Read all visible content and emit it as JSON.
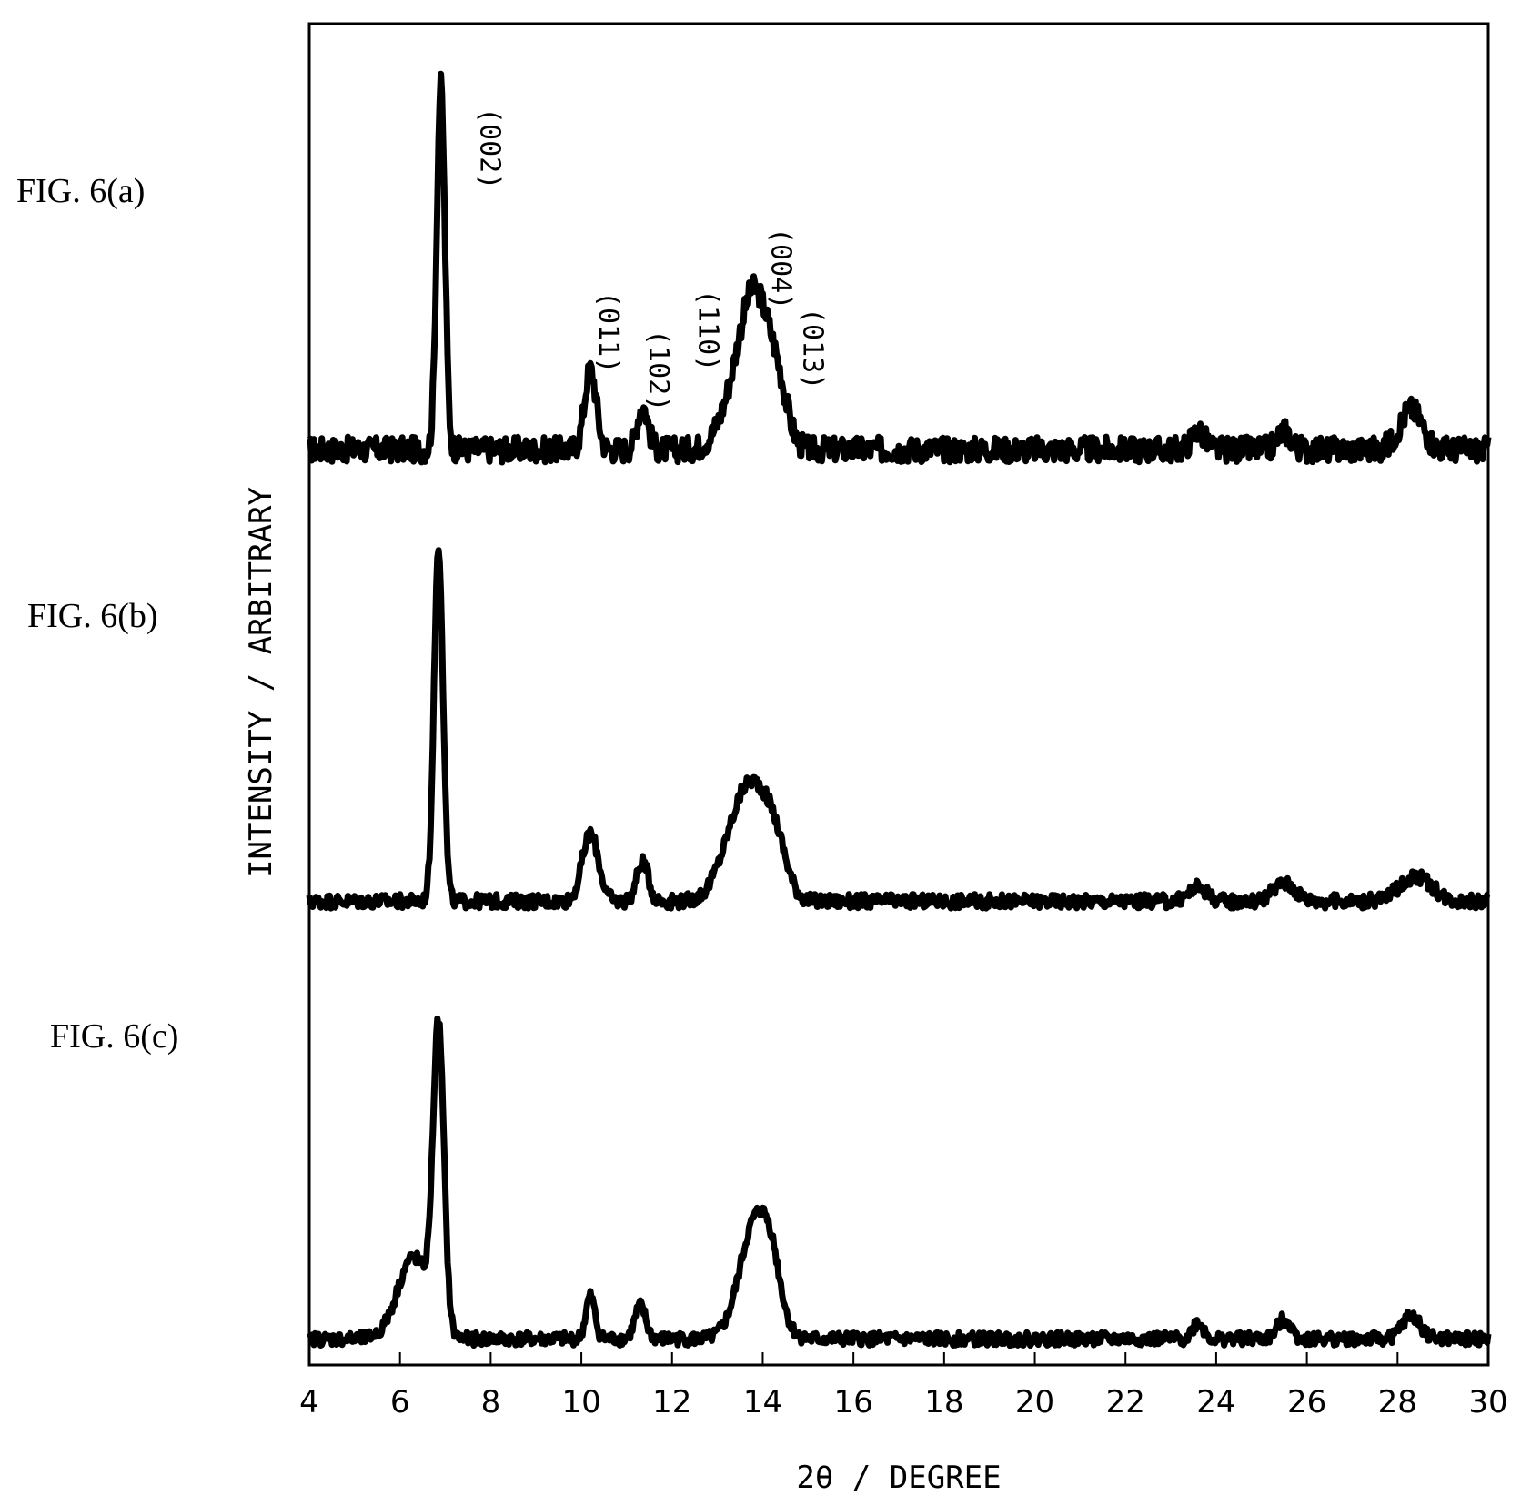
{
  "figure_labels": [
    "FIG. 6(a)",
    "FIG. 6(b)",
    "FIG. 6(c)"
  ],
  "chart_data": {
    "type": "line",
    "xlabel": "2θ / DEGREE",
    "ylabel": "INTENSITY / ARBITRARY",
    "xlim": [
      4,
      30
    ],
    "xticks": [
      4,
      6,
      8,
      10,
      12,
      14,
      16,
      18,
      20,
      22,
      24,
      26,
      28,
      30
    ],
    "grid": false,
    "stacked": true,
    "peak_labels": [
      {
        "label": "(002)",
        "x": 6.9
      },
      {
        "label": "(011)",
        "x": 10.2
      },
      {
        "label": "(102)",
        "x": 11.3
      },
      {
        "label": "(110)",
        "x": 13.2
      },
      {
        "label": "(004)",
        "x": 13.8
      },
      {
        "label": "(013)",
        "x": 14.5
      }
    ],
    "series": [
      {
        "baseline": 0.07,
        "noise": 0.035,
        "peaks": [
          {
            "x": 6.9,
            "height": 1.0,
            "width": 0.09
          },
          {
            "x": 10.2,
            "height": 0.22,
            "width": 0.13
          },
          {
            "x": 11.35,
            "height": 0.12,
            "width": 0.12
          },
          {
            "x": 13.4,
            "height": 0.12,
            "width": 0.35
          },
          {
            "x": 13.85,
            "height": 0.38,
            "width": 0.32
          },
          {
            "x": 14.35,
            "height": 0.12,
            "width": 0.22
          },
          {
            "x": 23.6,
            "height": 0.05,
            "width": 0.15
          },
          {
            "x": 25.5,
            "height": 0.05,
            "width": 0.15
          },
          {
            "x": 28.3,
            "height": 0.11,
            "width": 0.25
          }
        ]
      },
      {
        "baseline": 0.04,
        "noise": 0.02,
        "peaks": [
          {
            "x": 6.85,
            "height": 1.0,
            "width": 0.1
          },
          {
            "x": 10.2,
            "height": 0.19,
            "width": 0.18
          },
          {
            "x": 11.35,
            "height": 0.11,
            "width": 0.13
          },
          {
            "x": 13.3,
            "height": 0.1,
            "width": 0.35
          },
          {
            "x": 13.8,
            "height": 0.29,
            "width": 0.38
          },
          {
            "x": 14.3,
            "height": 0.1,
            "width": 0.25
          },
          {
            "x": 23.6,
            "height": 0.04,
            "width": 0.2
          },
          {
            "x": 25.5,
            "height": 0.05,
            "width": 0.25
          },
          {
            "x": 28.4,
            "height": 0.07,
            "width": 0.35
          }
        ]
      },
      {
        "baseline": 0.035,
        "noise": 0.02,
        "peaks": [
          {
            "x": 6.85,
            "height": 0.9,
            "width": 0.12
          },
          {
            "x": 6.3,
            "height": 0.25,
            "width": 0.35
          },
          {
            "x": 10.2,
            "height": 0.13,
            "width": 0.1
          },
          {
            "x": 11.3,
            "height": 0.1,
            "width": 0.12
          },
          {
            "x": 13.85,
            "height": 0.36,
            "width": 0.35
          },
          {
            "x": 14.2,
            "height": 0.1,
            "width": 0.2
          },
          {
            "x": 23.6,
            "height": 0.05,
            "width": 0.12
          },
          {
            "x": 25.5,
            "height": 0.06,
            "width": 0.15
          },
          {
            "x": 28.3,
            "height": 0.07,
            "width": 0.2
          }
        ]
      }
    ]
  }
}
